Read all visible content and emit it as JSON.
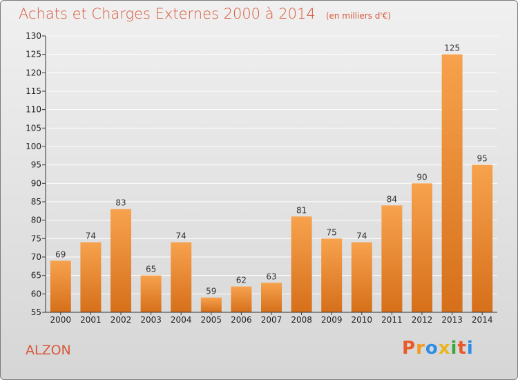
{
  "header": {
    "title": "Achats et Charges Externes 2000 à 2014",
    "unit": "(en milliers d'€)"
  },
  "footer": {
    "commune": "ALZON",
    "logo_text": "Proxiti"
  },
  "colors": {
    "title": "#d8583c",
    "bar_top": "#f7a24e",
    "bar_bottom": "#d66f1a",
    "logo": [
      "#e85a2a",
      "#f39a1e",
      "#2f8de4",
      "#e8b51e",
      "#3aa93a",
      "#e85a2a",
      "#2f8de4"
    ]
  },
  "chart_data": {
    "type": "bar",
    "categories": [
      "2000",
      "2001",
      "2002",
      "2003",
      "2004",
      "2005",
      "2006",
      "2007",
      "2008",
      "2009",
      "2010",
      "2011",
      "2012",
      "2013",
      "2014"
    ],
    "values": [
      69,
      74,
      83,
      65,
      74,
      59,
      62,
      63,
      81,
      75,
      74,
      84,
      90,
      125,
      95
    ],
    "ylim": [
      55,
      130
    ],
    "yticks": [
      55,
      60,
      65,
      70,
      75,
      80,
      85,
      90,
      95,
      100,
      105,
      110,
      115,
      120,
      125,
      130
    ],
    "grid": true
  }
}
